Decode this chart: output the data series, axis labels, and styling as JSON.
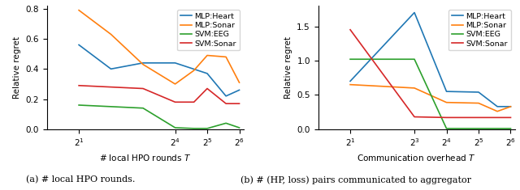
{
  "left": {
    "xlabel": "# local HPO rounds $T$",
    "ylabel": "Relative regret",
    "caption": "(a) # local HPO rounds.",
    "xtick_labels": [
      "$2^1$",
      "$2^4$",
      "$2^5$",
      "$2^6$"
    ],
    "xtick_vals": [
      2,
      16,
      32,
      64
    ],
    "series": {
      "MLP:Heart": {
        "x": [
          2,
          4,
          8,
          16,
          32,
          48,
          64
        ],
        "y": [
          0.56,
          0.4,
          0.44,
          0.44,
          0.37,
          0.22,
          0.26
        ]
      },
      "MLP:Sonar": {
        "x": [
          2,
          4,
          8,
          16,
          24,
          32,
          48,
          64
        ],
        "y": [
          0.79,
          0.63,
          0.43,
          0.3,
          0.39,
          0.49,
          0.48,
          0.31
        ]
      },
      "SVM:EEG": {
        "x": [
          2,
          4,
          8,
          16,
          24,
          32,
          48,
          64
        ],
        "y": [
          0.16,
          0.15,
          0.14,
          0.01,
          0.005,
          0.005,
          0.04,
          0.01
        ]
      },
      "SVM:Sonar": {
        "x": [
          2,
          4,
          8,
          16,
          24,
          32,
          48,
          64
        ],
        "y": [
          0.29,
          0.28,
          0.27,
          0.18,
          0.18,
          0.27,
          0.17,
          0.17
        ]
      }
    },
    "colors": {
      "MLP:Heart": "#1f77b4",
      "MLP:Sonar": "#ff7f0e",
      "SVM:EEG": "#2ca02c",
      "SVM:Sonar": "#d62728"
    },
    "ylim": [
      0.0,
      0.82
    ],
    "xlim": [
      1,
      70
    ]
  },
  "right": {
    "xlabel": "Communication overhead $T$",
    "ylabel": "Relative regret",
    "caption": "(b) # (HP, loss) pairs communicated to aggregator",
    "xtick_labels": [
      "$2^1$",
      "$2^3$",
      "$2^4$",
      "$2^5$",
      "$2^6$"
    ],
    "xtick_vals": [
      2,
      8,
      16,
      32,
      64
    ],
    "series": {
      "MLP:Heart": {
        "x": [
          2,
          8,
          16,
          32,
          48,
          64
        ],
        "y": [
          0.7,
          1.7,
          0.55,
          0.54,
          0.33,
          0.33
        ]
      },
      "MLP:Sonar": {
        "x": [
          2,
          8,
          16,
          32,
          48,
          64
        ],
        "y": [
          0.65,
          0.6,
          0.39,
          0.38,
          0.26,
          0.33
        ]
      },
      "SVM:EEG": {
        "x": [
          2,
          8,
          16,
          32,
          48,
          64
        ],
        "y": [
          1.02,
          1.02,
          0.01,
          0.01,
          0.01,
          0.01
        ]
      },
      "SVM:Sonar": {
        "x": [
          2,
          8,
          16,
          32,
          48,
          64
        ],
        "y": [
          1.45,
          0.18,
          0.17,
          0.17,
          0.17,
          0.17
        ]
      }
    },
    "colors": {
      "MLP:Heart": "#1f77b4",
      "MLP:Sonar": "#ff7f0e",
      "SVM:EEG": "#2ca02c",
      "SVM:Sonar": "#d62728"
    },
    "ylim": [
      0.0,
      1.8
    ],
    "xlim": [
      1,
      70
    ]
  }
}
